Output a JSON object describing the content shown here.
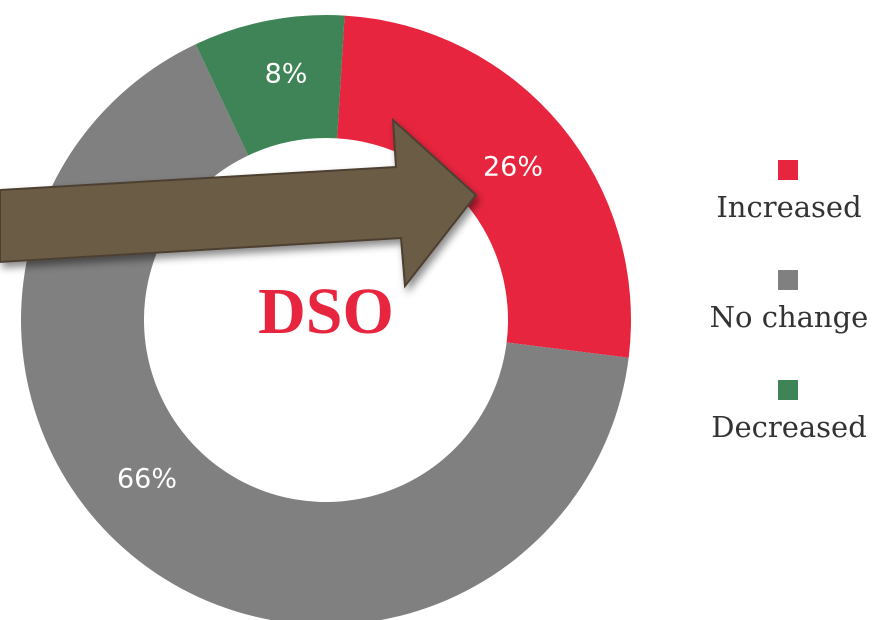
{
  "chart_data": {
    "type": "donut",
    "center_label": "DSO",
    "categories": [
      "Increased",
      "No change",
      "Decreased"
    ],
    "values": [
      26,
      66,
      8
    ],
    "value_labels": [
      "26%",
      "66%",
      "8%"
    ],
    "colors": [
      "#e8253f",
      "#808080",
      "#3e8456"
    ],
    "legend": "right"
  }
}
